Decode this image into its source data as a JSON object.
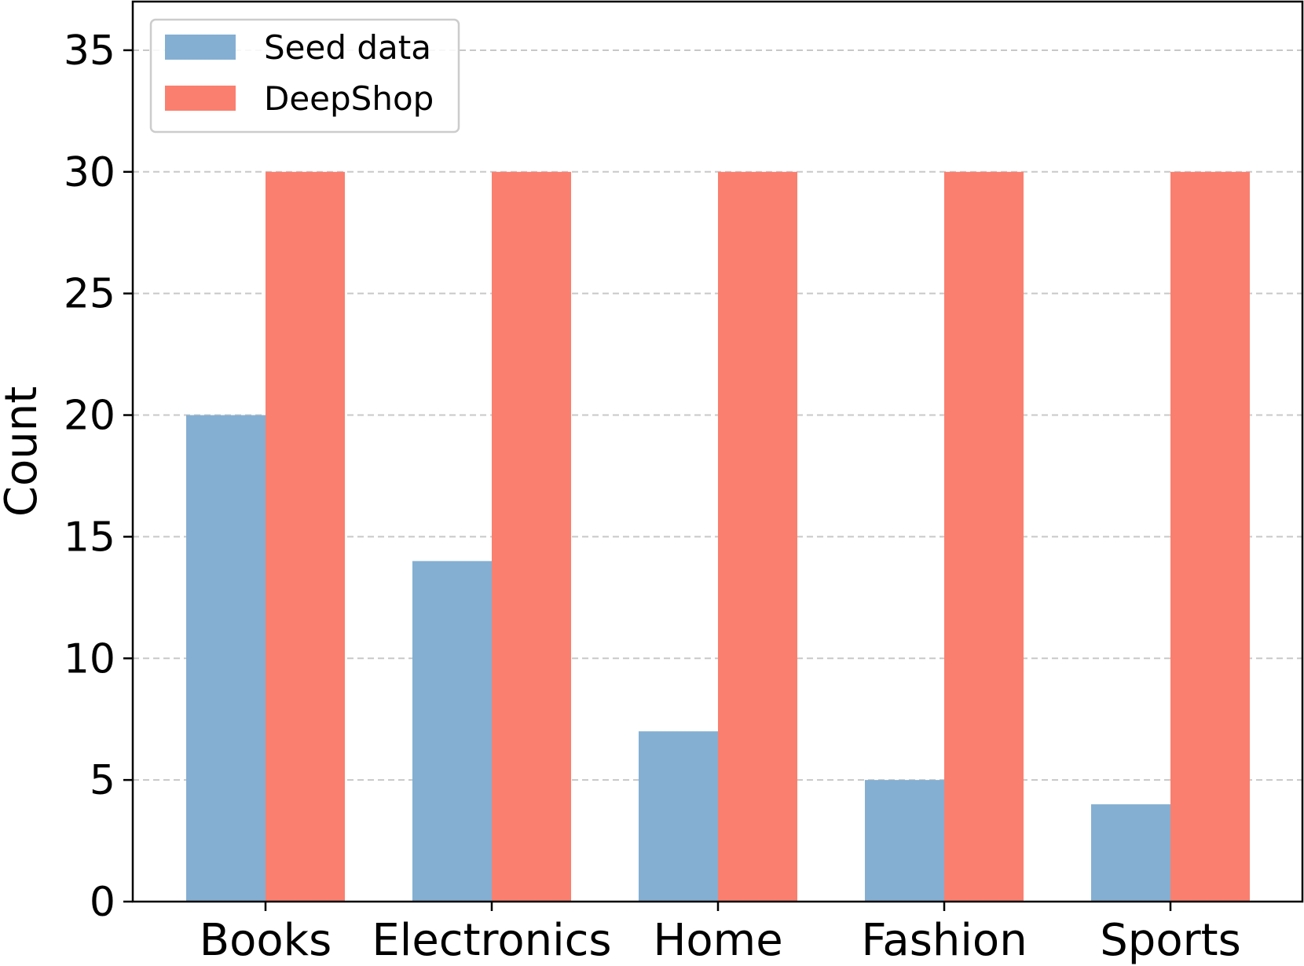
{
  "chart_data": {
    "type": "bar",
    "title": "",
    "xlabel": "",
    "ylabel": "Count",
    "categories": [
      "Books",
      "Electronics",
      "Home",
      "Fashion",
      "Sports"
    ],
    "series": [
      {
        "name": "Seed data",
        "values": [
          20,
          14,
          7,
          5,
          4
        ],
        "color": "#84afd2"
      },
      {
        "name": "DeepShop",
        "values": [
          30,
          30,
          30,
          30,
          30
        ],
        "color": "#fa7f6f"
      }
    ],
    "ylim": [
      0,
      37
    ],
    "yticks": [
      "0",
      "5",
      "10",
      "15",
      "20",
      "25",
      "30",
      "35"
    ],
    "grid": "horizontal-dashed",
    "legend": "top-left"
  }
}
